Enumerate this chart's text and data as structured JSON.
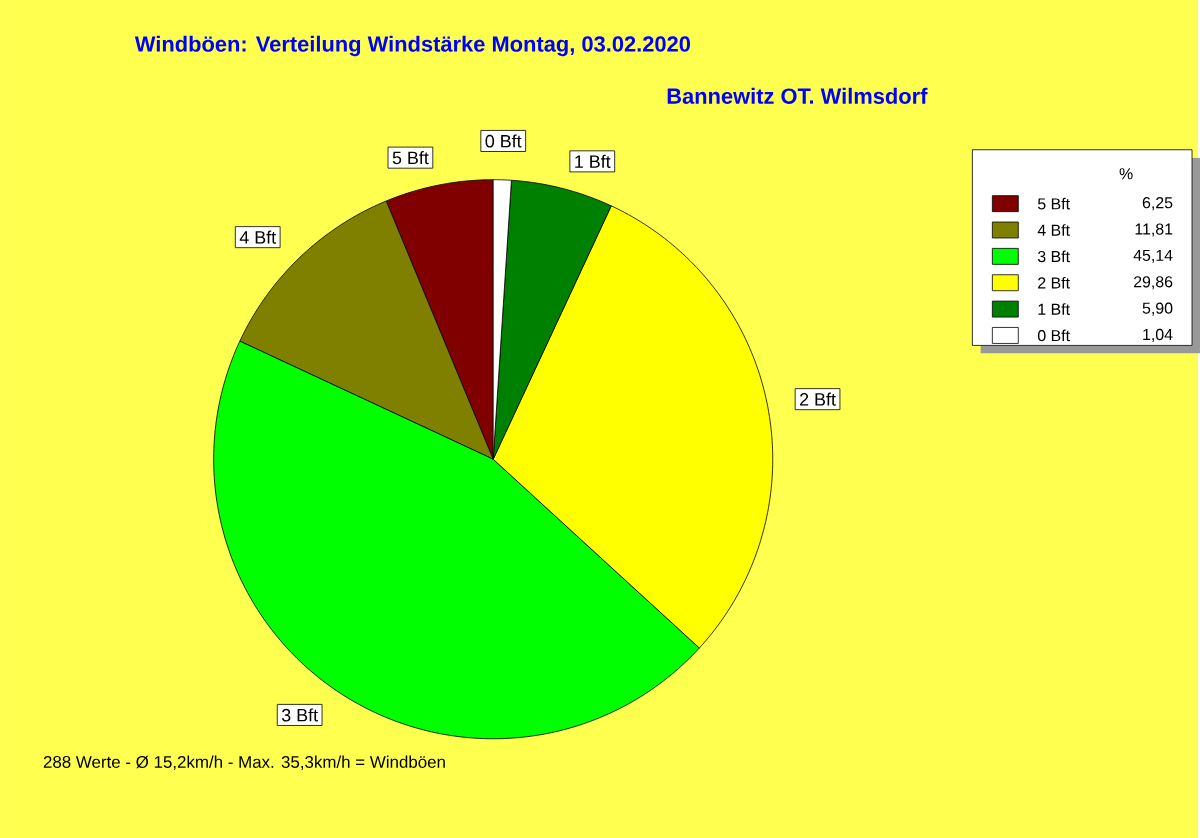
{
  "chart_data": {
    "type": "pie",
    "title": "Windböen: Verteilung Windstärke  Montag, 03.02.2020",
    "subtitle": "Bannewitz OT. Wilmsdorf",
    "categories": [
      "5 Bft",
      "4 Bft",
      "3 Bft",
      "2 Bft",
      "1 Bft",
      "0 Bft"
    ],
    "values": [
      6.25,
      11.81,
      45.14,
      29.86,
      5.9,
      1.04
    ],
    "value_labels": [
      "6,25",
      "11,81",
      "45,14",
      "29,86",
      "5,90",
      "1,04"
    ],
    "colors": [
      "#800000",
      "#808000",
      "#00ff00",
      "#ffff00",
      "#008000",
      "#ffffff"
    ],
    "legend": "top right",
    "legend_title": "%",
    "annotations": [
      "288 Werte   -   Ø 15,2km/h  -  Max. 35,3km/h = Windböen"
    ]
  }
}
